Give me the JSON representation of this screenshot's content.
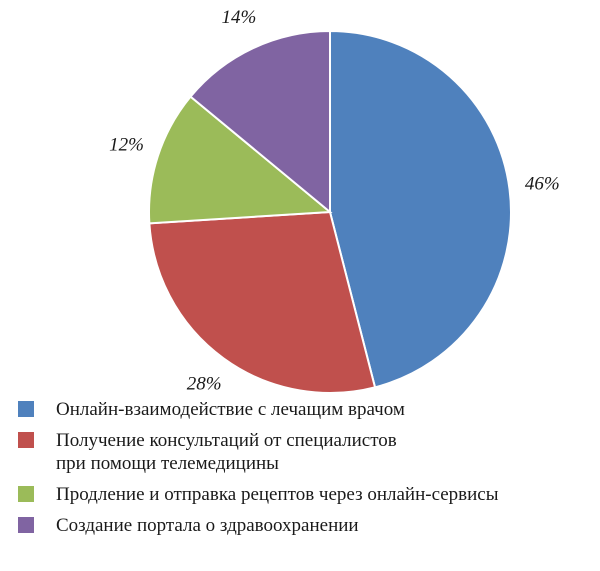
{
  "chart_data": {
    "type": "pie",
    "title": "",
    "categories": [
      "Онлайн-взаимодействие с лечащим врачом",
      "Получение консультаций от специалистов\nпри помощи телемедицины",
      "Продление и отправка рецептов через онлайн-сервисы",
      "Создание портала о здравоохранении"
    ],
    "values": [
      46,
      28,
      12,
      14
    ],
    "labels": [
      "46%",
      "28%",
      "12%",
      "14%"
    ],
    "colors": [
      "#4f81bd",
      "#c0504d",
      "#9bbb59",
      "#8064a2"
    ],
    "start": "12 o'clock",
    "direction": "clockwise",
    "legend_position": "bottom"
  }
}
